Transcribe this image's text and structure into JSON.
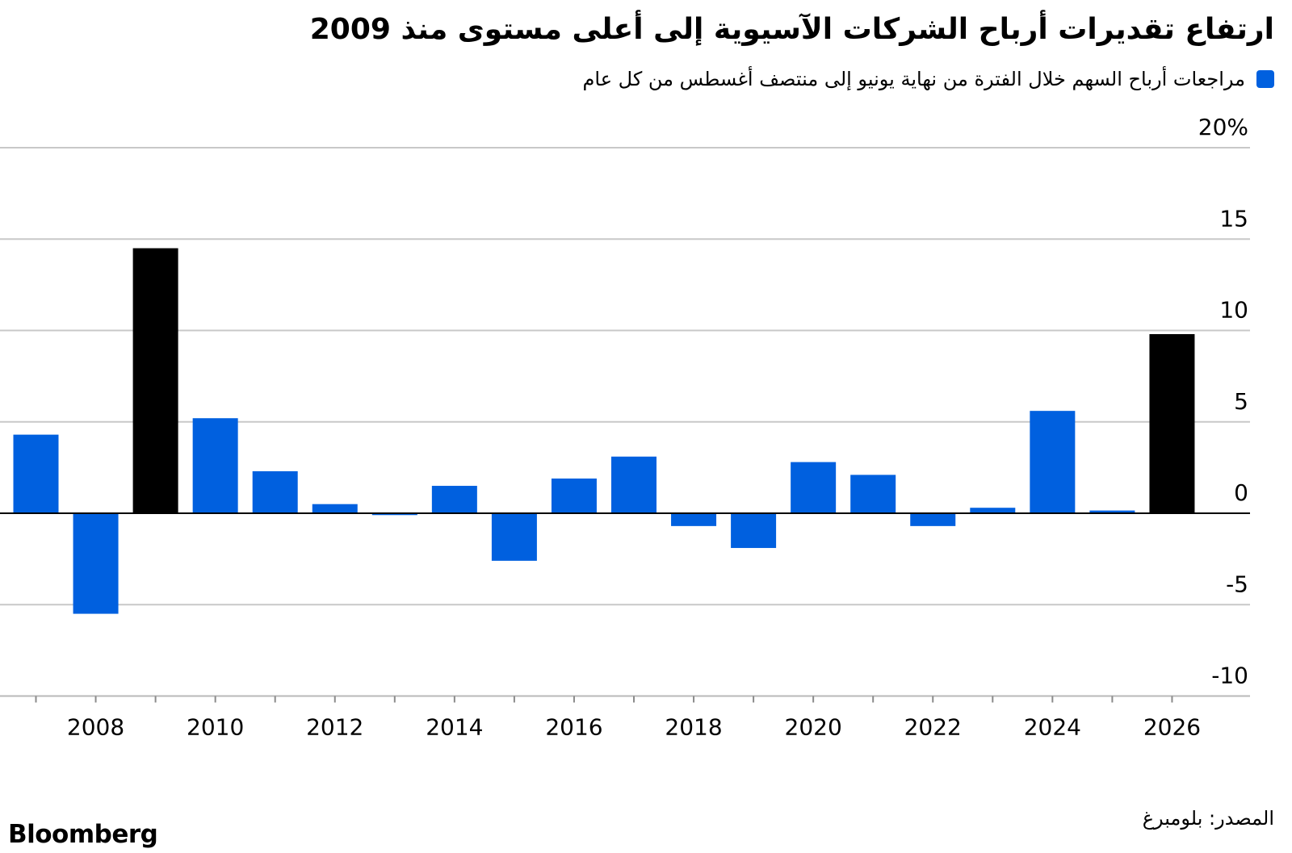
{
  "title": "ارتفاع تقديرات أرباح الشركات الآسيوية إلى أعلى مستوى منذ 2009",
  "legend": {
    "label": "مراجعات أرباح السهم خلال الفترة من نهاية يونيو إلى منتصف أغسطس من كل عام",
    "color": "#0060df"
  },
  "source": "المصدر: بلومبرغ",
  "logo": "Bloomberg",
  "chart_data": {
    "type": "bar",
    "ylim": [
      -10,
      20
    ],
    "xlim": [
      2007,
      2026
    ],
    "y_ticks": [
      20,
      15,
      10,
      5,
      0,
      -5,
      -10
    ],
    "y_tick_labels": [
      "20%",
      "15",
      "10",
      "5",
      "0",
      "-5",
      "-10"
    ],
    "x_tick_labels": [
      "2008",
      "2010",
      "2012",
      "2014",
      "2016",
      "2018",
      "2020",
      "2022",
      "2024",
      "2026"
    ],
    "grid": true,
    "series": [
      {
        "name": "مراجعات أرباح السهم خلال الفترة من نهاية يونيو إلى منتصف أغسطس من كل عام",
        "x": [
          2007,
          2008,
          2009,
          2010,
          2011,
          2012,
          2013,
          2014,
          2015,
          2016,
          2017,
          2018,
          2019,
          2020,
          2021,
          2022,
          2023,
          2024,
          2025,
          2026
        ],
        "values": [
          4.3,
          -5.5,
          14.5,
          5.2,
          2.3,
          0.5,
          -0.1,
          1.5,
          -2.6,
          1.9,
          3.1,
          -0.7,
          -1.9,
          2.8,
          2.1,
          -0.7,
          0.3,
          5.6,
          0.15,
          9.8
        ],
        "highlight_years": [
          2009,
          2026
        ]
      }
    ],
    "colors": {
      "bar": "#0060df",
      "highlight": "#000000",
      "grid": "#c8c8c8",
      "zero_line": "#000000"
    }
  }
}
